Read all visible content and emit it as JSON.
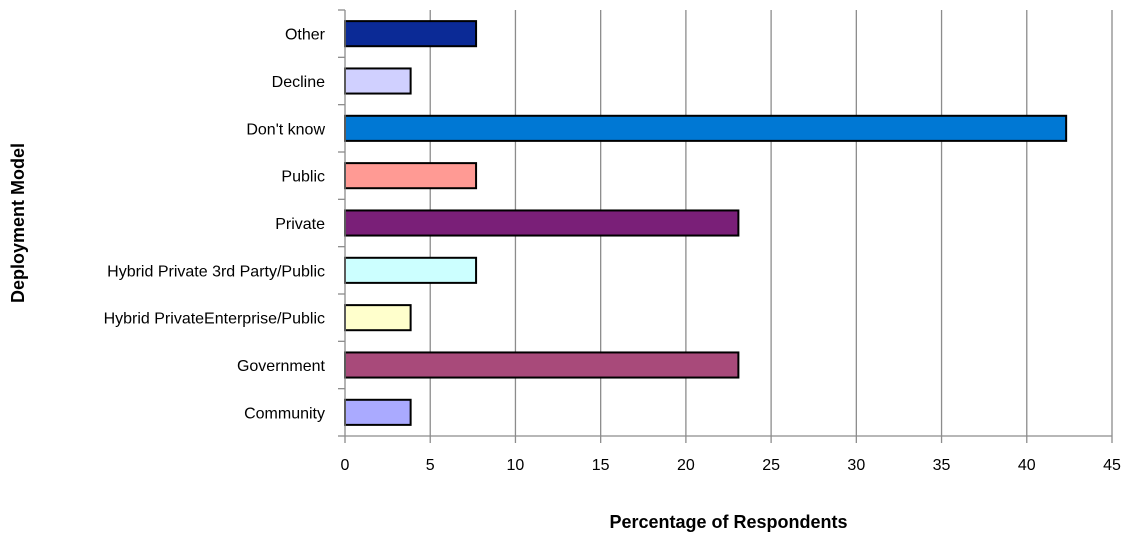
{
  "chart_data": {
    "type": "bar",
    "orientation": "horizontal",
    "title": "",
    "xlabel": "Percentage of Respondents",
    "ylabel": "Deployment Model",
    "categories": [
      "Community",
      "Government",
      "Hybrid PrivateEnterprise/Public",
      "Hybrid Private 3rd Party/Public",
      "Private",
      "Public",
      "Don't know",
      "Decline",
      "Other"
    ],
    "values": [
      3.85,
      23.08,
      3.85,
      7.69,
      23.08,
      7.69,
      42.31,
      3.85,
      7.69
    ],
    "colors": [
      "#aaaaff",
      "#a84a7a",
      "#ffffcc",
      "#ccffff",
      "#7a1f78",
      "#ff9a94",
      "#0078d4",
      "#d0d0ff",
      "#0b2a96"
    ],
    "xlim": [
      0,
      45
    ],
    "xticks": [
      0,
      5,
      10,
      15,
      20,
      25,
      30,
      35,
      40,
      45
    ],
    "grid": "vertical",
    "legend": "none"
  }
}
